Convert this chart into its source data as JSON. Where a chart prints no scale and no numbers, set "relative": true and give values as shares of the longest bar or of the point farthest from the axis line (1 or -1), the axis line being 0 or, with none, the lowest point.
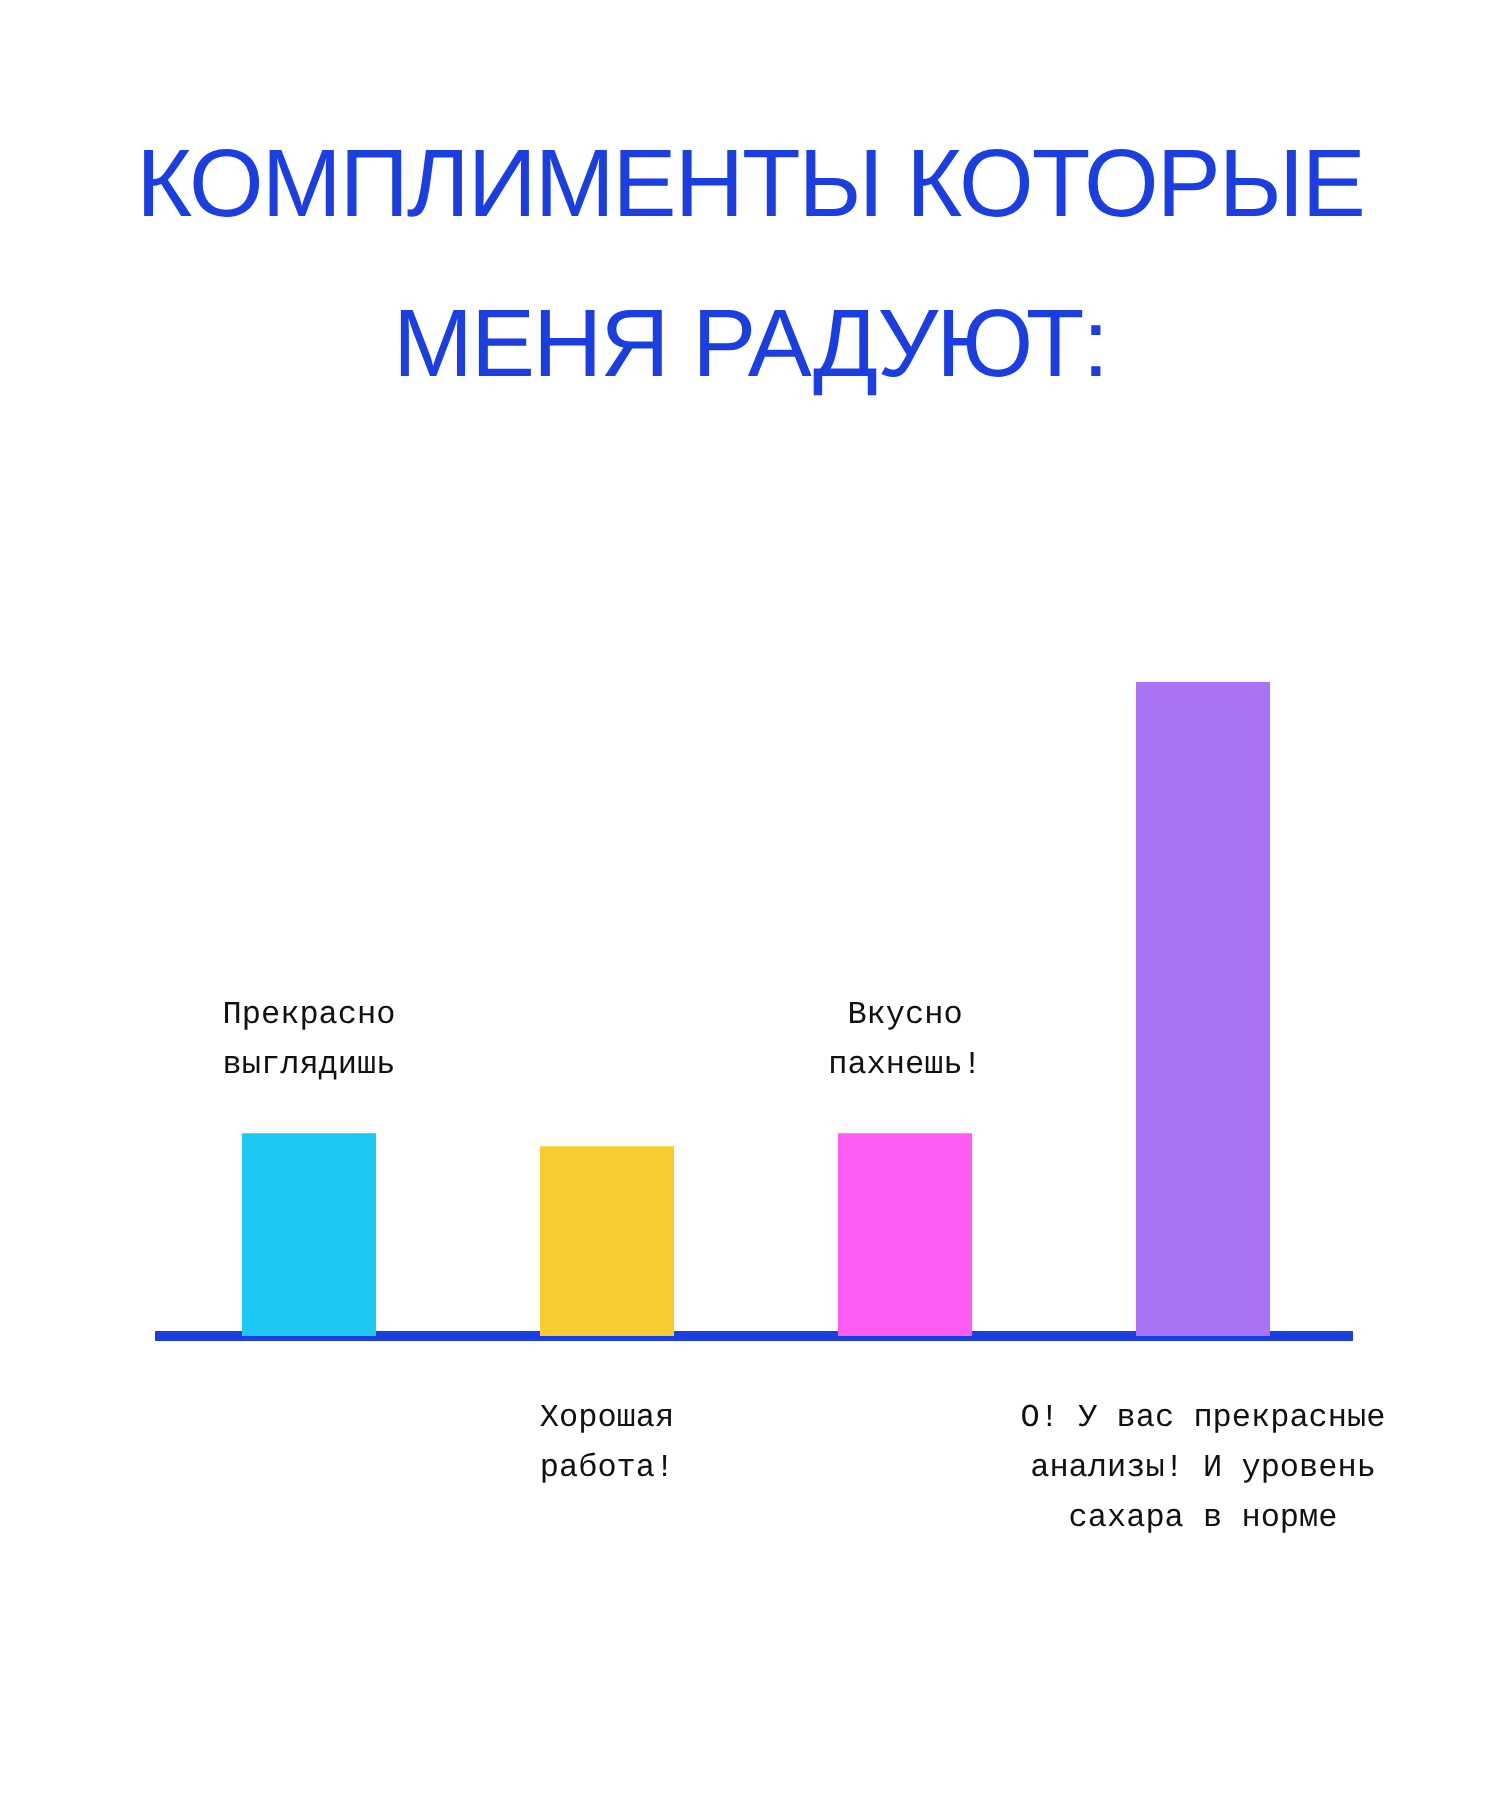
{
  "chart_data": {
    "type": "bar",
    "title": "КОМПЛИМЕНТЫ КОТОРЫЕ МЕНЯ РАДУЮТ:",
    "relative": true,
    "categories": [
      "Прекрасно выглядишь",
      "Хорошая работа!",
      "Вкусно пахнешь!",
      "О! У вас прекрасные анализы! И уровень сахара в норме"
    ],
    "values": [
      0.31,
      0.29,
      0.31,
      1
    ],
    "colors": [
      "#1ec8f5",
      "#f8cc30",
      "#ff5cf5",
      "#a873f5"
    ]
  }
}
